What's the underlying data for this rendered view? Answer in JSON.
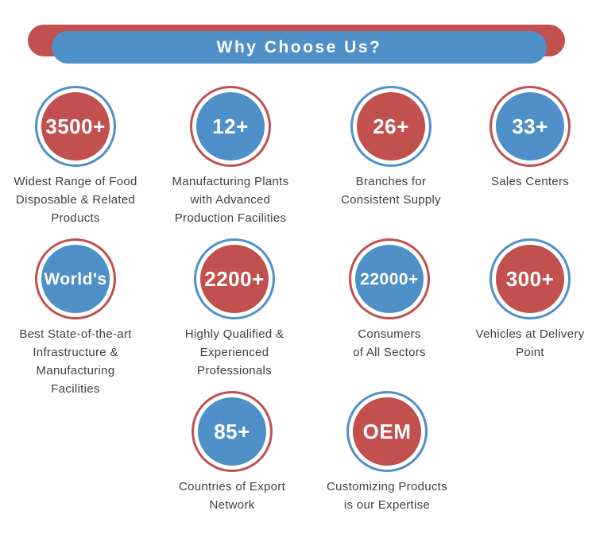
{
  "palette": {
    "red": "#c1504f",
    "blue": "#4f90c9",
    "caption_text": "#3f3f3f",
    "banner_text": "#ffffff"
  },
  "banner": {
    "title": "Why Choose Us?"
  },
  "stats": [
    {
      "value": "3500+",
      "fill": "red",
      "ring": "blue",
      "caption": "Widest Range of Food\nDisposable & Related\nProducts"
    },
    {
      "value": "12+",
      "fill": "blue",
      "ring": "red",
      "caption": "Manufacturing Plants\nwith Advanced\nProduction Facilities"
    },
    {
      "value": "26+",
      "fill": "red",
      "ring": "blue",
      "caption": "Branches for\nConsistent Supply"
    },
    {
      "value": "33+",
      "fill": "blue",
      "ring": "red",
      "caption": "Sales Centers"
    },
    {
      "value": "World's",
      "fill": "blue",
      "ring": "red",
      "caption": "Best State-of-the-art\nInfrastructure &\nManufacturing\nFacilities"
    },
    {
      "value": "2200+",
      "fill": "red",
      "ring": "blue",
      "caption": "Highly Qualified &\nExperienced\nProfessionals"
    },
    {
      "value": "22000+",
      "fill": "blue",
      "ring": "red",
      "caption": "Consumers\nof All Sectors"
    },
    {
      "value": "300+",
      "fill": "red",
      "ring": "blue",
      "caption": "Vehicles at Delivery\nPoint"
    },
    {
      "value": "85+",
      "fill": "blue",
      "ring": "red",
      "caption": "Countries of Export\nNetwork"
    },
    {
      "value": "OEM",
      "fill": "red",
      "ring": "blue",
      "caption": "Customizing Products\nis our Expertise"
    }
  ]
}
